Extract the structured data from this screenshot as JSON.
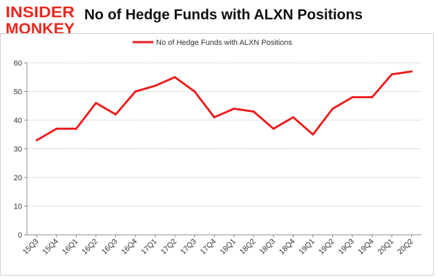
{
  "brand": {
    "line1": "INSIDER",
    "line2": "MONKEY",
    "color": "#e8281e"
  },
  "title": "No of Hedge Funds with ALXN Positions",
  "chart_data": {
    "type": "line",
    "title": "No of Hedge Funds with ALXN Positions",
    "xlabel": "",
    "ylabel": "",
    "categories": [
      "15Q3",
      "15Q4",
      "16Q1",
      "16Q2",
      "16Q3",
      "16Q4",
      "17Q1",
      "17Q2",
      "17Q3",
      "17Q4",
      "18Q1",
      "18Q2",
      "18Q3",
      "18Q4",
      "19Q1",
      "19Q2",
      "19Q3",
      "19Q4",
      "20Q1",
      "20Q2"
    ],
    "series": [
      {
        "name": "No of Hedge Funds with ALXN Positions",
        "color": "#ee1c1c",
        "values": [
          33,
          37,
          37,
          46,
          42,
          50,
          52,
          55,
          50,
          41,
          44,
          43,
          37,
          41,
          35,
          44,
          48,
          48,
          56,
          57
        ]
      }
    ],
    "ylim": [
      0,
      60
    ],
    "yticks": [
      0,
      10,
      20,
      30,
      40,
      50,
      60
    ],
    "grid": "horizontal-dashed",
    "legend": "top-center"
  }
}
